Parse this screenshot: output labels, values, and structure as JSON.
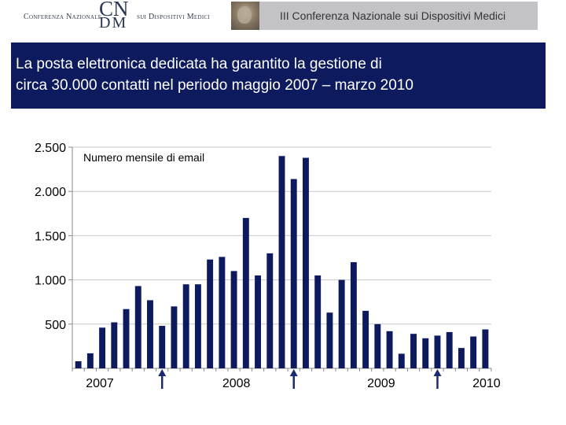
{
  "header": {
    "logo_left_text": "Conferenza Nazionale",
    "logo_cn": "CN",
    "logo_dm": "DM",
    "logo_right_text": "sui Dispositivi Medici",
    "banner_text": "III Conferenza Nazionale sui Dispositivi Medici"
  },
  "slide": {
    "title": "La posta elettronica dedicata ha garantito la gestione di\ncirca 30.000 contatti nel periodo maggio 2007 – marzo 2010"
  },
  "chart_data": {
    "type": "bar",
    "annotation": "Numero mensile di email",
    "y_tick_labels": [
      "500",
      "1.000",
      "1.500",
      "2.000",
      "2.500"
    ],
    "y_ticks": [
      500,
      1000,
      1500,
      2000,
      2500
    ],
    "ylim": [
      0,
      2500
    ],
    "x_year_labels": [
      {
        "label": "2007",
        "before_index": 2.3
      },
      {
        "label": "2008",
        "before_index": 13.7
      },
      {
        "label": "2009",
        "before_index": 25.8
      },
      {
        "label": "2010",
        "before_index": 34.6
      }
    ],
    "arrows_at_index": [
      7,
      18,
      30
    ],
    "bar_color": "#0d1a5e",
    "grid": true,
    "values": [
      80,
      170,
      460,
      520,
      670,
      930,
      770,
      480,
      700,
      950,
      950,
      1230,
      1260,
      1100,
      1700,
      1050,
      1300,
      2400,
      2140,
      2380,
      1050,
      630,
      1000,
      1200,
      650,
      500,
      420,
      165,
      390,
      340,
      370,
      410,
      230,
      360,
      440
    ]
  }
}
